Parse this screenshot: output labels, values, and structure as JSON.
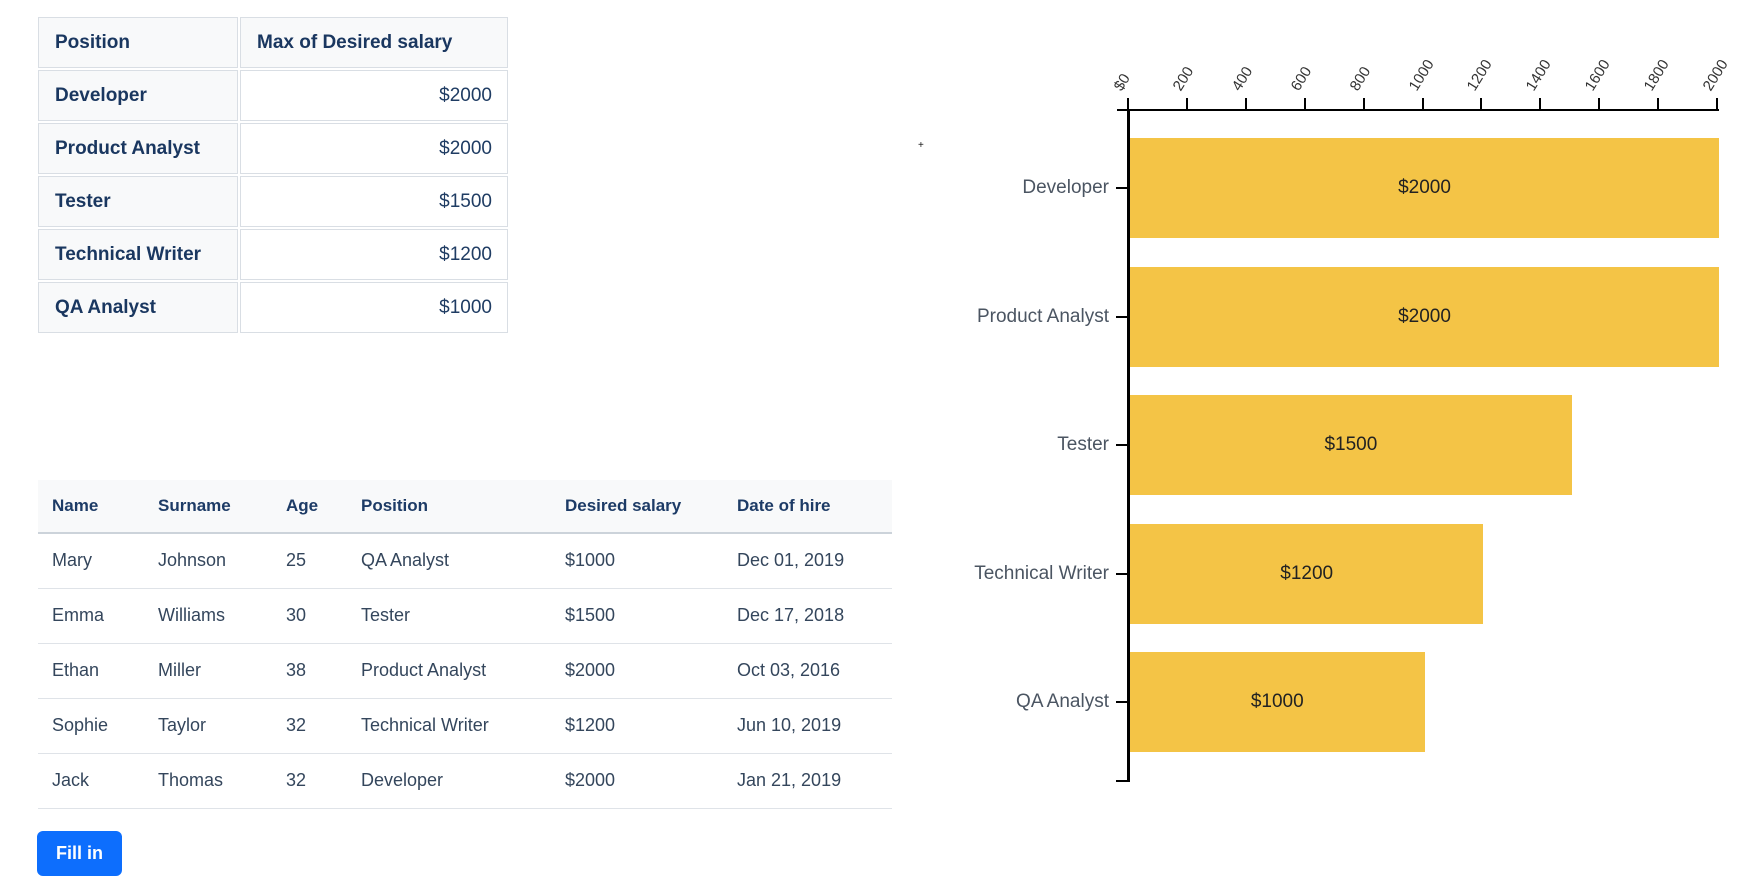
{
  "pivot_table": {
    "headers": [
      "Position",
      "Max of Desired salary"
    ],
    "rows": [
      [
        "Developer",
        "$2000"
      ],
      [
        "Product Analyst",
        "$2000"
      ],
      [
        "Tester",
        "$1500"
      ],
      [
        "Technical Writer",
        "$1200"
      ],
      [
        "QA Analyst",
        "$1000"
      ]
    ]
  },
  "employee_table": {
    "headers": [
      "Name",
      "Surname",
      "Age",
      "Position",
      "Desired salary",
      "Date of hire"
    ],
    "rows": [
      [
        "Mary",
        "Johnson",
        "25",
        "QA Analyst",
        "$1000",
        "Dec 01, 2019"
      ],
      [
        "Emma",
        "Williams",
        "30",
        "Tester",
        "$1500",
        "Dec 17, 2018"
      ],
      [
        "Ethan",
        "Miller",
        "38",
        "Product Analyst",
        "$2000",
        "Oct 03, 2016"
      ],
      [
        "Sophie",
        "Taylor",
        "32",
        "Technical Writer",
        "$1200",
        "Jun 10, 2019"
      ],
      [
        "Jack",
        "Thomas",
        "32",
        "Developer",
        "$2000",
        "Jan 21, 2019"
      ]
    ]
  },
  "button": {
    "label": "Fill in"
  },
  "colors": {
    "bar": "#F4C446",
    "primary_button": "#0D6EFD",
    "heading_text": "#1A3760",
    "body_text": "#34465C",
    "axis": "#000000",
    "header_bg": "#F8F9FA"
  },
  "stray_mark": "+",
  "chart_data": {
    "type": "bar",
    "orientation": "horizontal",
    "title": "",
    "xlabel": "",
    "ylabel": "",
    "categories": [
      "Developer",
      "Product Analyst",
      "Tester",
      "Technical Writer",
      "QA Analyst"
    ],
    "values": [
      2000,
      2000,
      1500,
      1200,
      1000
    ],
    "bar_labels": [
      "$2000",
      "$2000",
      "$1500",
      "$1200",
      "$1000"
    ],
    "xlim": [
      0,
      2000
    ],
    "x_tick_values": [
      0,
      200,
      400,
      600,
      800,
      1000,
      1200,
      1400,
      1600,
      1800,
      2000
    ],
    "x_ticks": [
      "$0",
      "200",
      "400",
      "600",
      "800",
      "1000",
      "1200",
      "1400",
      "1600",
      "1800",
      "2000"
    ],
    "bar_color": "#F4C446",
    "grid": false,
    "legend": false,
    "value_axis_position": "top"
  }
}
